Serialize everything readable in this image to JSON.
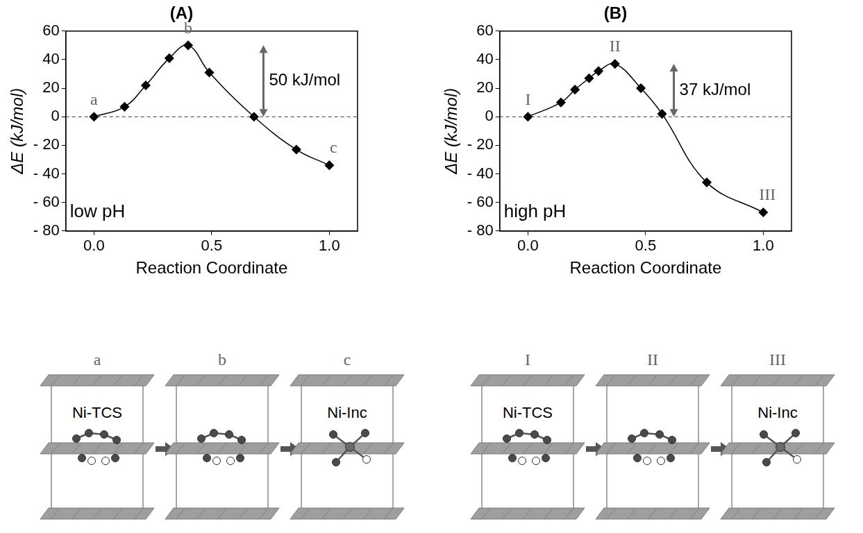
{
  "chart_data": [
    {
      "type": "line",
      "title": "(A)",
      "x_label": "Reaction Coordinate",
      "y_label": "ΔE (kJ/mol)",
      "x": [
        0,
        0.13,
        0.22,
        0.32,
        0.4,
        0.49,
        0.68,
        0.86,
        1.0
      ],
      "values": [
        0,
        7,
        22,
        41,
        50,
        31,
        0,
        -23,
        -34
      ],
      "point_labels": [
        "a",
        null,
        null,
        null,
        "b",
        null,
        null,
        null,
        "c"
      ],
      "color": "#000000",
      "marker": "diamond",
      "line_style": "solid",
      "xlim": [
        -0.12,
        1.12
      ],
      "xticks": [
        {
          "value": 0,
          "label": "0.0"
        },
        {
          "value": 0.5,
          "label": "0.5"
        },
        {
          "value": 1,
          "label": "1.0"
        }
      ],
      "ylim": [
        -80,
        60
      ],
      "yticks": [
        {
          "value": -80,
          "label": "- 80"
        },
        {
          "value": -60,
          "label": "- 60"
        },
        {
          "value": -40,
          "label": "- 40"
        },
        {
          "value": -20,
          "label": "- 20"
        },
        0,
        20,
        40,
        60
      ],
      "grid": false,
      "hline": 0,
      "annotations": [
        {
          "text": "50 kJ/mol",
          "x": 0.72,
          "y_from": 0,
          "y_to": 50
        },
        {
          "text": "low pH"
        }
      ]
    },
    {
      "type": "line",
      "title": "(B)",
      "x_label": "Reaction Coordinate",
      "y_label": "ΔE (kJ/mol)",
      "x": [
        0,
        0.14,
        0.2,
        0.26,
        0.3,
        0.37,
        0.48,
        0.57,
        0.76,
        1.0
      ],
      "values": [
        0,
        10,
        19,
        27,
        32,
        37,
        20,
        2,
        -46,
        -67
      ],
      "point_labels": [
        "I",
        null,
        null,
        null,
        null,
        "II",
        null,
        null,
        null,
        "III"
      ],
      "color": "#000000",
      "marker": "diamond",
      "line_style": "solid",
      "xlim": [
        -0.12,
        1.12
      ],
      "xticks": [
        {
          "value": 0,
          "label": "0.0"
        },
        {
          "value": 0.5,
          "label": "0.5"
        },
        {
          "value": 1,
          "label": "1.0"
        }
      ],
      "ylim": [
        -80,
        60
      ],
      "yticks": [
        {
          "value": -80,
          "label": "- 80"
        },
        {
          "value": -60,
          "label": "- 60"
        },
        {
          "value": -40,
          "label": "- 40"
        },
        {
          "value": -20,
          "label": "- 20"
        },
        0,
        20,
        40,
        60
      ],
      "grid": false,
      "hline": 0,
      "annotations": [
        {
          "text": "37 kJ/mol",
          "x": 0.62,
          "y_from": 0,
          "y_to": 37
        },
        {
          "text": "high pH"
        }
      ]
    }
  ],
  "diagrams": [
    {
      "panels": [
        {
          "label": "a",
          "text": "Ni-TCS"
        },
        {
          "label": "b"
        },
        {
          "label": "c",
          "text": "Ni-Inc"
        }
      ]
    },
    {
      "panels": [
        {
          "label": "I",
          "text": "Ni-TCS"
        },
        {
          "label": "II"
        },
        {
          "label": "III",
          "text": "Ni-Inc"
        }
      ]
    }
  ]
}
